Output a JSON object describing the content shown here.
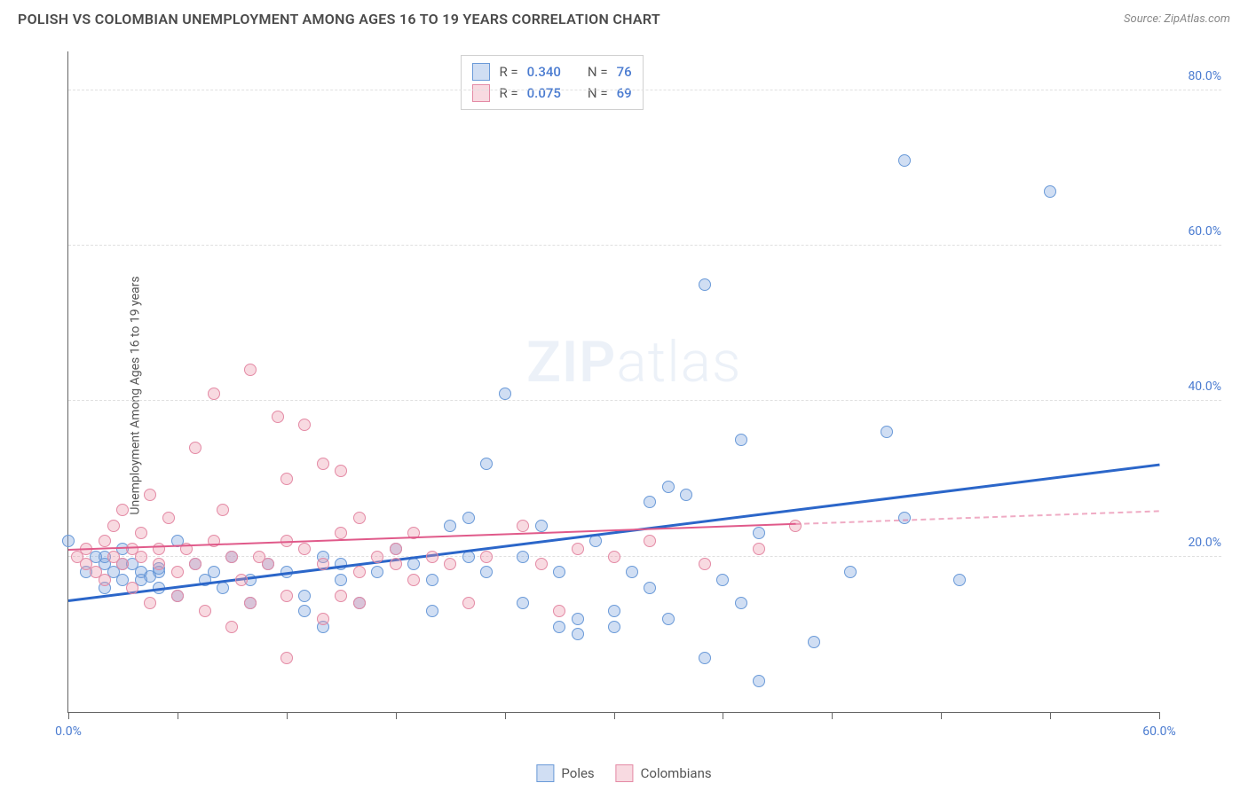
{
  "title": "POLISH VS COLOMBIAN UNEMPLOYMENT AMONG AGES 16 TO 19 YEARS CORRELATION CHART",
  "source": "Source: ZipAtlas.com",
  "ylabel": "Unemployment Among Ages 16 to 19 years",
  "watermark_bold": "ZIP",
  "watermark_rest": "atlas",
  "chart": {
    "type": "scatter",
    "xlim": [
      0,
      60
    ],
    "ylim": [
      0,
      85
    ],
    "xticks": [
      0,
      6,
      12,
      18,
      24,
      30,
      36,
      42,
      48,
      54,
      60
    ],
    "xtick_labels": {
      "0": "0.0%",
      "60": "60.0%"
    },
    "yticks": [
      20,
      40,
      60,
      80
    ],
    "ytick_labels": {
      "20": "20.0%",
      "40": "40.0%",
      "60": "60.0%",
      "80": "80.0%"
    },
    "grid_color": "#e0e0e0",
    "axis_color": "#666666",
    "tick_label_color": "#4a7bd0",
    "background_color": "#ffffff",
    "point_radius": 7,
    "series": [
      {
        "name": "Poles",
        "fill": "rgba(120,160,220,0.35)",
        "stroke": "#6a9ad8",
        "r_value": "0.340",
        "n_value": "76",
        "trend": {
          "x0": 0,
          "y0": 14.5,
          "x1": 60,
          "y1": 32,
          "solid_until_x": 60,
          "color": "#2b66c9",
          "width": 3
        },
        "points": [
          [
            0,
            22
          ],
          [
            1,
            18
          ],
          [
            1.5,
            20
          ],
          [
            2,
            19
          ],
          [
            2,
            16
          ],
          [
            2.5,
            18
          ],
          [
            3,
            17
          ],
          [
            3,
            21
          ],
          [
            3.5,
            19
          ],
          [
            4,
            18
          ],
          [
            4.5,
            17.5
          ],
          [
            5,
            18
          ],
          [
            5,
            16
          ],
          [
            6,
            22
          ],
          [
            6,
            15
          ],
          [
            7,
            19
          ],
          [
            7.5,
            17
          ],
          [
            8,
            18
          ],
          [
            8.5,
            16
          ],
          [
            9,
            20
          ],
          [
            10,
            17
          ],
          [
            10,
            14
          ],
          [
            11,
            19
          ],
          [
            12,
            18
          ],
          [
            13,
            15
          ],
          [
            13,
            13
          ],
          [
            14,
            20
          ],
          [
            14,
            11
          ],
          [
            15,
            19
          ],
          [
            15,
            17
          ],
          [
            16,
            14
          ],
          [
            17,
            18
          ],
          [
            18,
            21
          ],
          [
            19,
            19
          ],
          [
            20,
            13
          ],
          [
            20,
            17
          ],
          [
            21,
            24
          ],
          [
            22,
            25
          ],
          [
            22,
            20
          ],
          [
            23,
            18
          ],
          [
            23,
            32
          ],
          [
            24,
            41
          ],
          [
            25,
            20
          ],
          [
            25,
            14
          ],
          [
            26,
            24
          ],
          [
            27,
            11
          ],
          [
            27,
            18
          ],
          [
            28,
            12
          ],
          [
            28,
            10
          ],
          [
            29,
            22
          ],
          [
            30,
            13
          ],
          [
            30,
            11
          ],
          [
            31,
            18
          ],
          [
            32,
            16
          ],
          [
            32,
            27
          ],
          [
            33,
            29
          ],
          [
            33,
            12
          ],
          [
            34,
            28
          ],
          [
            35,
            55
          ],
          [
            35,
            7
          ],
          [
            36,
            17
          ],
          [
            37,
            14
          ],
          [
            37,
            35
          ],
          [
            38,
            4
          ],
          [
            38,
            23
          ],
          [
            41,
            9
          ],
          [
            43,
            18
          ],
          [
            45,
            36
          ],
          [
            46,
            25
          ],
          [
            46,
            71
          ],
          [
            49,
            17
          ],
          [
            54,
            67
          ],
          [
            2,
            20
          ],
          [
            3,
            19
          ],
          [
            4,
            17
          ],
          [
            5,
            18.5
          ]
        ]
      },
      {
        "name": "Colombians",
        "fill": "rgba(235,150,170,0.35)",
        "stroke": "#e48aa5",
        "r_value": "0.075",
        "n_value": "69",
        "trend": {
          "x0": 0,
          "y0": 21,
          "x1": 60,
          "y1": 26,
          "solid_until_x": 40,
          "color": "#e05a8a",
          "width": 2
        },
        "points": [
          [
            0.5,
            20
          ],
          [
            1,
            21
          ],
          [
            1,
            19
          ],
          [
            1.5,
            18
          ],
          [
            2,
            22
          ],
          [
            2,
            17
          ],
          [
            2.5,
            20
          ],
          [
            2.5,
            24
          ],
          [
            3,
            19
          ],
          [
            3,
            26
          ],
          [
            3.5,
            21
          ],
          [
            3.5,
            16
          ],
          [
            4,
            20
          ],
          [
            4,
            23
          ],
          [
            4.5,
            28
          ],
          [
            4.5,
            14
          ],
          [
            5,
            21
          ],
          [
            5,
            19
          ],
          [
            5.5,
            25
          ],
          [
            6,
            18
          ],
          [
            6,
            15
          ],
          [
            6.5,
            21
          ],
          [
            7,
            34
          ],
          [
            7,
            19
          ],
          [
            7.5,
            13
          ],
          [
            8,
            22
          ],
          [
            8,
            41
          ],
          [
            8.5,
            26
          ],
          [
            9,
            11
          ],
          [
            9,
            20
          ],
          [
            9.5,
            17
          ],
          [
            10,
            44
          ],
          [
            10,
            14
          ],
          [
            10.5,
            20
          ],
          [
            11,
            19
          ],
          [
            11.5,
            38
          ],
          [
            12,
            22
          ],
          [
            12,
            15
          ],
          [
            12,
            30
          ],
          [
            12,
            7
          ],
          [
            13,
            21
          ],
          [
            13,
            37
          ],
          [
            14,
            19
          ],
          [
            14,
            12
          ],
          [
            14,
            32
          ],
          [
            15,
            23
          ],
          [
            15,
            15
          ],
          [
            15,
            31
          ],
          [
            16,
            18
          ],
          [
            16,
            14
          ],
          [
            16,
            25
          ],
          [
            17,
            20
          ],
          [
            18,
            21
          ],
          [
            18,
            19
          ],
          [
            19,
            17
          ],
          [
            19,
            23
          ],
          [
            20,
            20
          ],
          [
            21,
            19
          ],
          [
            22,
            14
          ],
          [
            23,
            20
          ],
          [
            25,
            24
          ],
          [
            26,
            19
          ],
          [
            27,
            13
          ],
          [
            28,
            21
          ],
          [
            30,
            20
          ],
          [
            32,
            22
          ],
          [
            35,
            19
          ],
          [
            38,
            21
          ],
          [
            40,
            24
          ]
        ]
      }
    ]
  },
  "stats_labels": {
    "r": "R =",
    "n": "N ="
  },
  "legend": {
    "series1": "Poles",
    "series2": "Colombians"
  }
}
